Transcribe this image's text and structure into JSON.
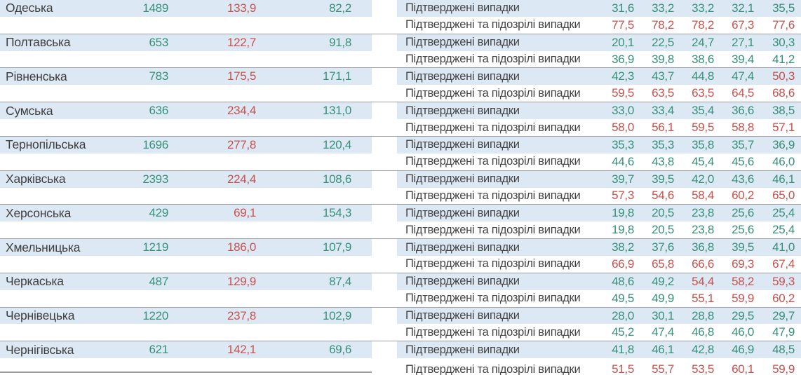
{
  "colors": {
    "row_highlight": "#dce9f4",
    "row_alt": "#ffffff",
    "separator": "#9e9e9e",
    "positive_green": "#379078",
    "negative_red": "#c8514d",
    "text": "#3f3f3f"
  },
  "labels": {
    "confirmed": "Підтверджені випадки",
    "confirmed_suspected": "Підтверджені та підозрілі випадки"
  },
  "rows": [
    {
      "region": "Одеська",
      "count": "1489",
      "rate_red": "133,9",
      "rate_green": "82,2",
      "confirmed_values": [
        "31,6",
        "33,2",
        "33,2",
        "32,1",
        "35,5"
      ],
      "confirmed_colors": [
        "green",
        "green",
        "green",
        "green",
        "green"
      ],
      "suspected_values": [
        "77,5",
        "78,2",
        "78,2",
        "67,3",
        "77,6"
      ],
      "suspected_colors": [
        "red",
        "red",
        "red",
        "red",
        "red"
      ]
    },
    {
      "region": "Полтавська",
      "count": "653",
      "rate_red": "122,7",
      "rate_green": "91,8",
      "confirmed_values": [
        "20,1",
        "22,5",
        "24,7",
        "27,1",
        "30,3"
      ],
      "confirmed_colors": [
        "green",
        "green",
        "green",
        "green",
        "green"
      ],
      "suspected_values": [
        "36,9",
        "39,8",
        "38,6",
        "39,4",
        "41,2"
      ],
      "suspected_colors": [
        "green",
        "green",
        "green",
        "green",
        "green"
      ]
    },
    {
      "region": "Рівненська",
      "count": "783",
      "rate_red": "175,5",
      "rate_green": "171,1",
      "confirmed_values": [
        "42,3",
        "43,7",
        "44,8",
        "47,4",
        "50,3"
      ],
      "confirmed_colors": [
        "green",
        "green",
        "green",
        "green",
        "red"
      ],
      "suspected_values": [
        "59,5",
        "63,5",
        "63,5",
        "64,5",
        "68,6"
      ],
      "suspected_colors": [
        "red",
        "red",
        "red",
        "red",
        "red"
      ]
    },
    {
      "region": "Сумська",
      "count": "636",
      "rate_red": "234,4",
      "rate_green": "131,0",
      "confirmed_values": [
        "33,0",
        "33,4",
        "35,4",
        "36,6",
        "38,5"
      ],
      "confirmed_colors": [
        "green",
        "green",
        "green",
        "green",
        "green"
      ],
      "suspected_values": [
        "58,0",
        "56,1",
        "59,5",
        "58,8",
        "57,1"
      ],
      "suspected_colors": [
        "red",
        "red",
        "red",
        "red",
        "red"
      ]
    },
    {
      "region": "Тернопільська",
      "count": "1696",
      "rate_red": "277,8",
      "rate_green": "120,4",
      "confirmed_values": [
        "35,3",
        "35,3",
        "35,8",
        "35,7",
        "36,9"
      ],
      "confirmed_colors": [
        "green",
        "green",
        "green",
        "green",
        "green"
      ],
      "suspected_values": [
        "44,6",
        "43,8",
        "45,4",
        "45,6",
        "46,0"
      ],
      "suspected_colors": [
        "green",
        "green",
        "green",
        "green",
        "green"
      ]
    },
    {
      "region": "Харківська",
      "count": "2393",
      "rate_red": "224,4",
      "rate_green": "108,6",
      "confirmed_values": [
        "39,7",
        "39,5",
        "42,0",
        "43,6",
        "46,1"
      ],
      "confirmed_colors": [
        "green",
        "green",
        "green",
        "green",
        "green"
      ],
      "suspected_values": [
        "57,3",
        "54,6",
        "58,4",
        "60,2",
        "65,0"
      ],
      "suspected_colors": [
        "red",
        "red",
        "red",
        "red",
        "red"
      ]
    },
    {
      "region": "Херсонська",
      "count": "429",
      "rate_red": "69,1",
      "rate_green": "154,3",
      "confirmed_values": [
        "19,8",
        "20,5",
        "23,8",
        "25,6",
        "25,4"
      ],
      "confirmed_colors": [
        "green",
        "green",
        "green",
        "green",
        "green"
      ],
      "suspected_values": [
        "19,8",
        "20,5",
        "23,8",
        "25,6",
        "25,4"
      ],
      "suspected_colors": [
        "green",
        "green",
        "green",
        "green",
        "green"
      ]
    },
    {
      "region": "Хмельницька",
      "count": "1219",
      "rate_red": "186,0",
      "rate_green": "107,9",
      "confirmed_values": [
        "38,2",
        "37,6",
        "36,8",
        "39,5",
        "41,0"
      ],
      "confirmed_colors": [
        "green",
        "green",
        "green",
        "green",
        "green"
      ],
      "suspected_values": [
        "66,9",
        "65,8",
        "66,6",
        "69,3",
        "67,4"
      ],
      "suspected_colors": [
        "red",
        "red",
        "red",
        "red",
        "red"
      ]
    },
    {
      "region": "Черкаська",
      "count": "487",
      "rate_red": "129,9",
      "rate_green": "87,4",
      "confirmed_values": [
        "48,6",
        "49,2",
        "54,4",
        "58,2",
        "59,3"
      ],
      "confirmed_colors": [
        "green",
        "green",
        "red",
        "red",
        "red"
      ],
      "suspected_values": [
        "49,5",
        "49,9",
        "55,1",
        "59,9",
        "60,2"
      ],
      "suspected_colors": [
        "green",
        "green",
        "red",
        "red",
        "red"
      ]
    },
    {
      "region": "Чернівецька",
      "count": "1220",
      "rate_red": "237,8",
      "rate_green": "102,9",
      "confirmed_values": [
        "28,0",
        "30,1",
        "28,8",
        "29,5",
        "29,7"
      ],
      "confirmed_colors": [
        "green",
        "green",
        "green",
        "green",
        "green"
      ],
      "suspected_values": [
        "45,2",
        "47,4",
        "46,8",
        "46,0",
        "47,9"
      ],
      "suspected_colors": [
        "green",
        "green",
        "green",
        "green",
        "green"
      ]
    },
    {
      "region": "Чернігівська",
      "count": "621",
      "rate_red": "142,1",
      "rate_green": "69,6",
      "confirmed_values": [
        "41,8",
        "46,1",
        "42,8",
        "46,9",
        "48,5"
      ],
      "confirmed_colors": [
        "green",
        "green",
        "green",
        "green",
        "green"
      ],
      "suspected_values": [
        "51,5",
        "55,7",
        "53,5",
        "60,1",
        "59,9"
      ],
      "suspected_colors": [
        "red",
        "red",
        "red",
        "red",
        "red"
      ]
    }
  ]
}
